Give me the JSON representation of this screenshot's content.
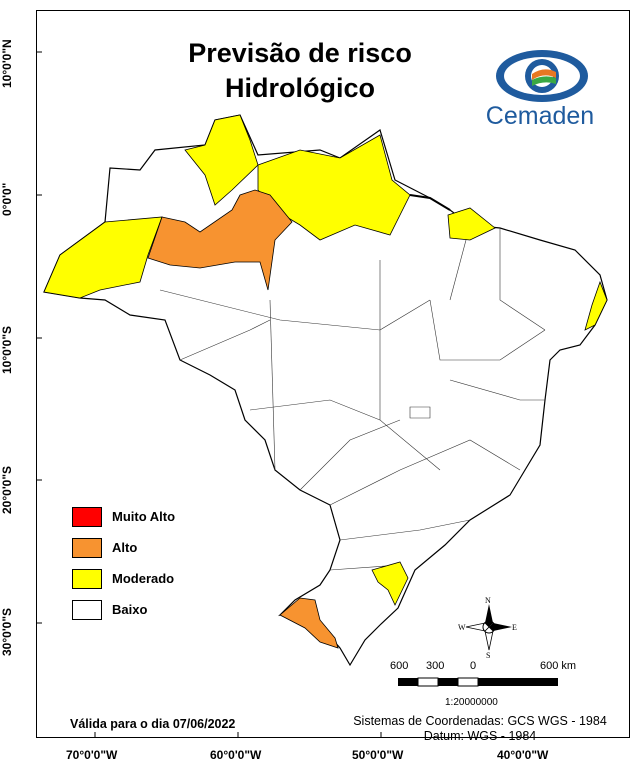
{
  "title_line1": "Previsão de risco",
  "title_line2": "Hidrológico",
  "logo_text": "Cemaden",
  "legend": [
    {
      "label": "Muito Alto",
      "color": "#ff0000"
    },
    {
      "label": "Alto",
      "color": "#f79330"
    },
    {
      "label": "Moderado",
      "color": "#ffff00"
    },
    {
      "label": "Baixo",
      "color": "#ffffff"
    }
  ],
  "valid_text": "Válida para o dia 07/06/2022",
  "coords_line1": "Sistemas de Coordenadas: GCS WGS - 1984",
  "coords_line2": "Datum: WGS - 1984",
  "lat_ticks": [
    "10°0'0\"N",
    "0°0'0\"",
    "10°0'0\"S",
    "20°0'0\"S",
    "30°0'0\"S"
  ],
  "lon_ticks": [
    "70°0'0\"W",
    "60°0'0\"W",
    "50°0'0\"W",
    "40°0'0\"W"
  ],
  "scale_labels": [
    "600",
    "300",
    "0",
    "600 km"
  ],
  "scale_ratio": "1:20000000",
  "compass": {
    "n": "N",
    "s": "S",
    "e": "E",
    "w": "W"
  }
}
